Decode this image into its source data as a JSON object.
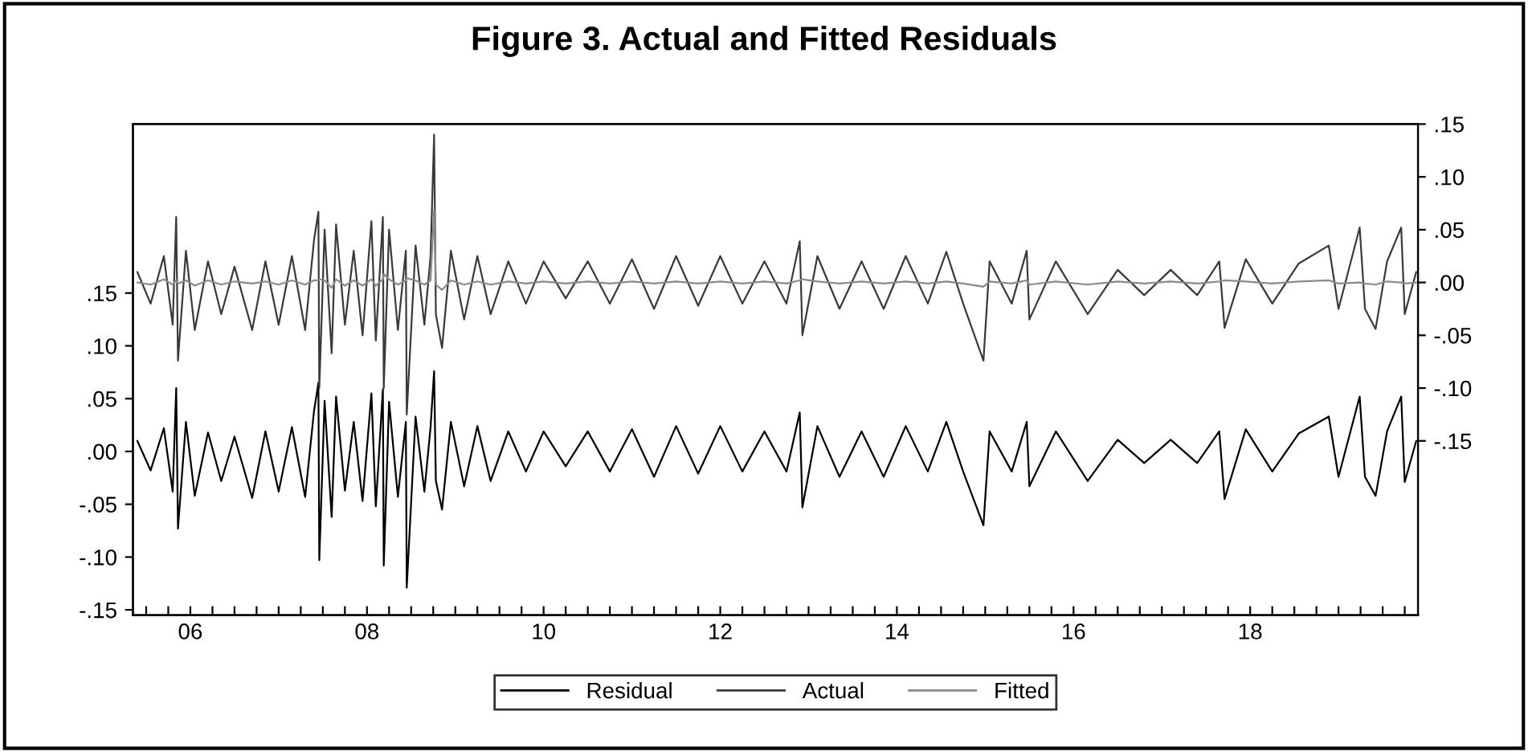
{
  "chart_data": {
    "type": "line",
    "title": "Figure 3. Actual and Fitted Residuals",
    "x": [
      2005.4,
      2005.55,
      2005.7,
      2005.8,
      2005.84,
      2005.86,
      2005.95,
      2006.05,
      2006.2,
      2006.35,
      2006.5,
      2006.7,
      2006.85,
      2007.0,
      2007.15,
      2007.3,
      2007.4,
      2007.45,
      2007.46,
      2007.52,
      2007.6,
      2007.65,
      2007.75,
      2007.85,
      2007.95,
      2008.05,
      2008.1,
      2008.18,
      2008.19,
      2008.25,
      2008.35,
      2008.44,
      2008.45,
      2008.55,
      2008.65,
      2008.72,
      2008.76,
      2008.78,
      2008.85,
      2008.95,
      2009.1,
      2009.25,
      2009.4,
      2009.6,
      2009.8,
      2010.0,
      2010.25,
      2010.5,
      2010.75,
      2011.0,
      2011.25,
      2011.5,
      2011.75,
      2012.0,
      2012.25,
      2012.5,
      2012.75,
      2012.9,
      2012.93,
      2013.1,
      2013.35,
      2013.6,
      2013.85,
      2014.1,
      2014.35,
      2014.56,
      2014.75,
      2014.98,
      2015.05,
      2015.3,
      2015.47,
      2015.5,
      2015.8,
      2016.16,
      2016.5,
      2016.8,
      2017.1,
      2017.4,
      2017.65,
      2017.71,
      2017.95,
      2018.25,
      2018.55,
      2018.89,
      2019.0,
      2019.24,
      2019.3,
      2019.42,
      2019.55,
      2019.71,
      2019.75,
      2019.88
    ],
    "series": [
      {
        "name": "Residual",
        "color": "#000000",
        "values": [
          0.01,
          -0.018,
          0.022,
          -0.038,
          0.06,
          -0.073,
          0.028,
          -0.042,
          0.018,
          -0.028,
          0.014,
          -0.044,
          0.019,
          -0.038,
          0.023,
          -0.043,
          0.038,
          0.065,
          -0.103,
          0.048,
          -0.062,
          0.052,
          -0.037,
          0.028,
          -0.047,
          0.055,
          -0.052,
          0.059,
          -0.108,
          0.047,
          -0.043,
          0.028,
          -0.129,
          0.033,
          -0.038,
          0.023,
          0.076,
          -0.028,
          -0.055,
          0.028,
          -0.033,
          0.024,
          -0.028,
          0.019,
          -0.019,
          0.019,
          -0.014,
          0.019,
          -0.019,
          0.021,
          -0.024,
          0.024,
          -0.021,
          0.024,
          -0.019,
          0.019,
          -0.019,
          0.037,
          -0.053,
          0.024,
          -0.024,
          0.019,
          -0.024,
          0.024,
          -0.019,
          0.028,
          -0.019,
          -0.07,
          0.019,
          -0.019,
          0.028,
          -0.033,
          0.019,
          -0.028,
          0.011,
          -0.011,
          0.011,
          -0.011,
          0.019,
          -0.045,
          0.021,
          -0.019,
          0.017,
          0.033,
          -0.024,
          0.052,
          -0.024,
          -0.042,
          0.019,
          0.052,
          -0.029,
          0.01
        ]
      },
      {
        "name": "Actual",
        "color": "#3a3a3a",
        "axis": "y2",
        "values": [
          0.01,
          -0.02,
          0.025,
          -0.04,
          0.062,
          -0.074,
          0.03,
          -0.045,
          0.02,
          -0.03,
          0.015,
          -0.045,
          0.02,
          -0.04,
          0.025,
          -0.045,
          0.04,
          0.067,
          -0.1,
          0.05,
          -0.067,
          0.055,
          -0.04,
          0.03,
          -0.05,
          0.058,
          -0.055,
          0.062,
          -0.1,
          0.05,
          -0.045,
          0.03,
          -0.125,
          0.035,
          -0.04,
          0.025,
          0.14,
          -0.03,
          -0.062,
          0.03,
          -0.035,
          0.025,
          -0.03,
          0.02,
          -0.02,
          0.02,
          -0.015,
          0.02,
          -0.02,
          0.022,
          -0.025,
          0.025,
          -0.022,
          0.025,
          -0.02,
          0.02,
          -0.02,
          0.039,
          -0.05,
          0.025,
          -0.025,
          0.02,
          -0.025,
          0.025,
          -0.02,
          0.029,
          -0.02,
          -0.074,
          0.02,
          -0.02,
          0.03,
          -0.035,
          0.02,
          -0.03,
          0.012,
          -0.012,
          0.012,
          -0.012,
          0.02,
          -0.043,
          0.022,
          -0.02,
          0.018,
          0.035,
          -0.025,
          0.052,
          -0.025,
          -0.044,
          0.02,
          0.052,
          -0.03,
          0.01
        ]
      },
      {
        "name": "Fitted",
        "color": "#8a8a8a",
        "axis": "y2",
        "values": [
          0.0,
          -0.002,
          0.003,
          -0.002,
          0.002,
          -0.001,
          0.002,
          -0.003,
          0.002,
          -0.002,
          0.001,
          -0.001,
          0.001,
          -0.002,
          0.002,
          -0.002,
          0.002,
          0.002,
          0.003,
          0.002,
          -0.005,
          0.003,
          -0.003,
          0.002,
          -0.003,
          0.003,
          -0.003,
          0.003,
          0.008,
          0.003,
          -0.002,
          0.002,
          0.004,
          0.002,
          -0.002,
          0.002,
          0.069,
          -0.002,
          -0.007,
          0.002,
          -0.002,
          0.001,
          -0.002,
          0.001,
          -0.001,
          0.001,
          -0.001,
          0.001,
          -0.001,
          0.001,
          -0.001,
          0.001,
          -0.001,
          0.001,
          -0.001,
          0.001,
          -0.001,
          0.002,
          0.003,
          0.001,
          -0.001,
          0.001,
          -0.001,
          0.001,
          -0.001,
          0.001,
          -0.001,
          -0.004,
          0.001,
          -0.001,
          0.002,
          -0.002,
          0.001,
          -0.002,
          0.001,
          -0.001,
          0.001,
          -0.001,
          0.001,
          0.002,
          0.001,
          -0.001,
          0.001,
          0.002,
          -0.001,
          0.0,
          -0.001,
          -0.002,
          0.001,
          0.0,
          -0.001,
          0.0
        ]
      }
    ],
    "xlim": [
      2005.35,
      2019.9
    ],
    "xticks": [
      {
        "value": 2005.5,
        "label": null
      },
      {
        "value": 2005.75,
        "label": null
      },
      {
        "value": 2006,
        "label": "06"
      },
      {
        "value": 2006.25,
        "label": null
      },
      {
        "value": 2006.5,
        "label": null
      },
      {
        "value": 2006.75,
        "label": null
      },
      {
        "value": 2007,
        "label": null
      },
      {
        "value": 2007.25,
        "label": null
      },
      {
        "value": 2007.5,
        "label": null
      },
      {
        "value": 2007.75,
        "label": null
      },
      {
        "value": 2008,
        "label": "08"
      },
      {
        "value": 2008.25,
        "label": null
      },
      {
        "value": 2008.5,
        "label": null
      },
      {
        "value": 2008.75,
        "label": null
      },
      {
        "value": 2009,
        "label": null
      },
      {
        "value": 2009.25,
        "label": null
      },
      {
        "value": 2009.5,
        "label": null
      },
      {
        "value": 2009.75,
        "label": null
      },
      {
        "value": 2010,
        "label": "10"
      },
      {
        "value": 2010.25,
        "label": null
      },
      {
        "value": 2010.5,
        "label": null
      },
      {
        "value": 2010.75,
        "label": null
      },
      {
        "value": 2011,
        "label": null
      },
      {
        "value": 2011.25,
        "label": null
      },
      {
        "value": 2011.5,
        "label": null
      },
      {
        "value": 2011.75,
        "label": null
      },
      {
        "value": 2012,
        "label": "12"
      },
      {
        "value": 2012.25,
        "label": null
      },
      {
        "value": 2012.5,
        "label": null
      },
      {
        "value": 2012.75,
        "label": null
      },
      {
        "value": 2013,
        "label": null
      },
      {
        "value": 2013.25,
        "label": null
      },
      {
        "value": 2013.5,
        "label": null
      },
      {
        "value": 2013.75,
        "label": null
      },
      {
        "value": 2014,
        "label": "14"
      },
      {
        "value": 2014.25,
        "label": null
      },
      {
        "value": 2014.5,
        "label": null
      },
      {
        "value": 2014.75,
        "label": null
      },
      {
        "value": 2015,
        "label": null
      },
      {
        "value": 2015.25,
        "label": null
      },
      {
        "value": 2015.5,
        "label": null
      },
      {
        "value": 2015.75,
        "label": null
      },
      {
        "value": 2016,
        "label": "16"
      },
      {
        "value": 2016.25,
        "label": null
      },
      {
        "value": 2016.5,
        "label": null
      },
      {
        "value": 2016.75,
        "label": null
      },
      {
        "value": 2017,
        "label": null
      },
      {
        "value": 2017.25,
        "label": null
      },
      {
        "value": 2017.5,
        "label": null
      },
      {
        "value": 2017.75,
        "label": null
      },
      {
        "value": 2018,
        "label": "18"
      },
      {
        "value": 2018.25,
        "label": null
      },
      {
        "value": 2018.5,
        "label": null
      },
      {
        "value": 2018.75,
        "label": null
      },
      {
        "value": 2019,
        "label": null
      },
      {
        "value": 2019.25,
        "label": null
      },
      {
        "value": 2019.5,
        "label": null
      },
      {
        "value": 2019.75,
        "label": null
      }
    ],
    "ylim": [
      -0.155,
      0.31
    ],
    "yticks": [
      {
        "value": -0.15,
        "label": "-.15"
      },
      {
        "value": -0.1,
        "label": "-.10"
      },
      {
        "value": -0.05,
        "label": "-.05"
      },
      {
        "value": 0,
        "label": ".00"
      },
      {
        "value": 0.05,
        "label": ".05"
      },
      {
        "value": 0.1,
        "label": ".10"
      },
      {
        "value": 0.15,
        "label": ".15"
      }
    ],
    "y2lim": [
      -0.315,
      0.15
    ],
    "y2ticks": [
      {
        "value": -0.15,
        "label": "-.15"
      },
      {
        "value": -0.1,
        "label": "-.10"
      },
      {
        "value": -0.05,
        "label": "-.05"
      },
      {
        "value": 0,
        "label": ".00"
      },
      {
        "value": 0.05,
        "label": ".05"
      },
      {
        "value": 0.1,
        "label": ".10"
      },
      {
        "value": 0.15,
        "label": ".15"
      }
    ],
    "grid": false,
    "legend": "bottom"
  }
}
